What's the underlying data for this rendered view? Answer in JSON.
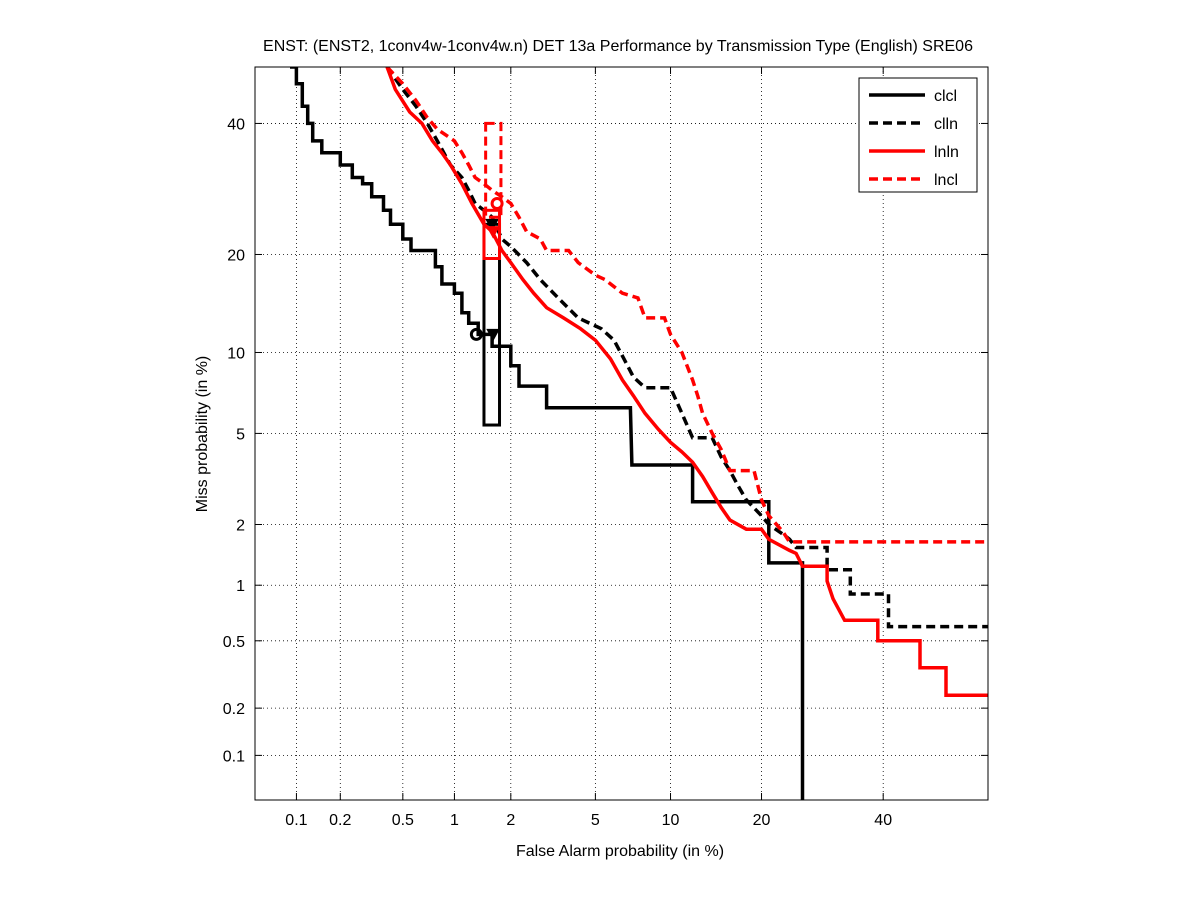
{
  "chart_data": {
    "type": "line",
    "title": "ENST: (ENST2, 1conv4w-1conv4w.n) DET 13a Performance by Transmission Type (English) SRE06",
    "xlabel": "False Alarm probability (in %)",
    "ylabel": "Miss probability (in %)",
    "xscale": "normal-deviate (probit)",
    "yscale": "normal-deviate (probit)",
    "xlim": [
      0.05,
      60
    ],
    "ylim": [
      0.05,
      50
    ],
    "xticks": [
      0.1,
      0.2,
      0.5,
      1,
      2,
      5,
      10,
      20,
      40
    ],
    "xtick_labels": [
      "0.1",
      "0.2",
      "0.5",
      "1",
      "2",
      "5",
      "10",
      "20",
      "40"
    ],
    "yticks": [
      0.1,
      0.2,
      0.5,
      1,
      2,
      5,
      10,
      20,
      40
    ],
    "ytick_labels": [
      "0.1",
      "0.2",
      "0.5",
      "1",
      "2",
      "5",
      "10",
      "20",
      "40"
    ],
    "grid": "dotted",
    "legend_position": "top-right",
    "series": [
      {
        "name": "clcl",
        "color": "#000000",
        "dash": "solid",
        "points": [
          [
            0.09,
            50
          ],
          [
            0.1,
            50
          ],
          [
            0.1,
            47
          ],
          [
            0.11,
            47
          ],
          [
            0.11,
            43
          ],
          [
            0.12,
            43
          ],
          [
            0.12,
            40
          ],
          [
            0.13,
            40
          ],
          [
            0.13,
            37
          ],
          [
            0.15,
            37
          ],
          [
            0.15,
            35
          ],
          [
            0.2,
            35
          ],
          [
            0.2,
            33
          ],
          [
            0.24,
            33
          ],
          [
            0.24,
            31
          ],
          [
            0.28,
            31
          ],
          [
            0.28,
            30
          ],
          [
            0.32,
            30
          ],
          [
            0.32,
            28
          ],
          [
            0.38,
            28
          ],
          [
            0.38,
            26
          ],
          [
            0.42,
            26
          ],
          [
            0.42,
            24
          ],
          [
            0.5,
            24
          ],
          [
            0.5,
            22
          ],
          [
            0.56,
            22
          ],
          [
            0.56,
            20.5
          ],
          [
            0.78,
            20.5
          ],
          [
            0.78,
            18.5
          ],
          [
            0.85,
            18.5
          ],
          [
            0.85,
            16.5
          ],
          [
            1.0,
            16.5
          ],
          [
            1.0,
            15.5
          ],
          [
            1.1,
            15.5
          ],
          [
            1.1,
            13.5
          ],
          [
            1.2,
            13.5
          ],
          [
            1.2,
            12.5
          ],
          [
            1.35,
            12.5
          ],
          [
            1.35,
            11.5
          ],
          [
            1.6,
            11.5
          ],
          [
            1.6,
            10.5
          ],
          [
            2.0,
            10.5
          ],
          [
            2.0,
            9
          ],
          [
            2.2,
            9
          ],
          [
            2.2,
            7.6
          ],
          [
            3.0,
            7.6
          ],
          [
            3.0,
            6.3
          ],
          [
            7.0,
            6.3
          ],
          [
            7.1,
            3.7
          ],
          [
            12,
            3.7
          ],
          [
            12,
            2.55
          ],
          [
            21,
            2.55
          ],
          [
            21,
            1.3
          ],
          [
            26,
            1.3
          ],
          [
            26,
            0.0501
          ]
        ],
        "marker": {
          "type": "circle",
          "at": [
            1.32,
            11.5
          ]
        },
        "marker2": {
          "type": "triangle-down",
          "at": [
            1.62,
            11.5
          ]
        },
        "ci_box": {
          "x": [
            1.45,
            1.75
          ],
          "y": [
            5.4,
            24
          ]
        }
      },
      {
        "name": "clln",
        "color": "#000000",
        "dash": "dashed",
        "points": [
          [
            0.4,
            50
          ],
          [
            0.5,
            46
          ],
          [
            0.6,
            43
          ],
          [
            0.7,
            40
          ],
          [
            0.8,
            37
          ],
          [
            0.95,
            33
          ],
          [
            1.1,
            31
          ],
          [
            1.2,
            29
          ],
          [
            1.3,
            27
          ],
          [
            1.45,
            26
          ],
          [
            1.6,
            25
          ],
          [
            1.8,
            22
          ],
          [
            2.0,
            21
          ],
          [
            2.4,
            19
          ],
          [
            2.8,
            17
          ],
          [
            3.4,
            15
          ],
          [
            4.2,
            13
          ],
          [
            5.3,
            12
          ],
          [
            6.0,
            11
          ],
          [
            6.6,
            9.5
          ],
          [
            7.2,
            8.2
          ],
          [
            8.0,
            7.5
          ],
          [
            10,
            7.5
          ],
          [
            11,
            6
          ],
          [
            12,
            4.8
          ],
          [
            14,
            4.8
          ],
          [
            15,
            4
          ],
          [
            16,
            3.5
          ],
          [
            17,
            3
          ],
          [
            18,
            2.6
          ],
          [
            20,
            2.2
          ],
          [
            21,
            2
          ],
          [
            23,
            1.8
          ],
          [
            24,
            1.7
          ],
          [
            25,
            1.55
          ],
          [
            30,
            1.55
          ],
          [
            30,
            1.2
          ],
          [
            34,
            1.2
          ],
          [
            34,
            0.9
          ],
          [
            41,
            0.9
          ],
          [
            41,
            0.6
          ],
          [
            60,
            0.6
          ]
        ],
        "marker": {
          "type": "triangle-down",
          "at": [
            1.6,
            24
          ]
        }
      },
      {
        "name": "lnln",
        "color": "#ff0000",
        "dash": "solid",
        "points": [
          [
            0.4,
            50
          ],
          [
            0.45,
            46
          ],
          [
            0.55,
            42
          ],
          [
            0.65,
            40
          ],
          [
            0.75,
            37
          ],
          [
            0.85,
            35
          ],
          [
            0.95,
            33
          ],
          [
            1.1,
            30
          ],
          [
            1.25,
            27
          ],
          [
            1.45,
            24
          ],
          [
            1.6,
            23
          ],
          [
            1.8,
            20.5
          ],
          [
            2.0,
            19
          ],
          [
            2.3,
            17
          ],
          [
            2.6,
            15.5
          ],
          [
            3.0,
            14
          ],
          [
            3.6,
            13
          ],
          [
            4.3,
            12
          ],
          [
            5.0,
            11
          ],
          [
            5.8,
            9.5
          ],
          [
            6.5,
            8
          ],
          [
            7.2,
            7
          ],
          [
            8,
            6
          ],
          [
            9,
            5.2
          ],
          [
            10,
            4.6
          ],
          [
            11,
            4.2
          ],
          [
            12,
            3.8
          ],
          [
            13,
            3.3
          ],
          [
            14,
            2.8
          ],
          [
            15,
            2.4
          ],
          [
            16,
            2.1
          ],
          [
            18,
            1.9
          ],
          [
            20,
            1.9
          ],
          [
            21,
            1.7
          ],
          [
            24,
            1.5
          ],
          [
            25,
            1.45
          ],
          [
            26,
            1.25
          ],
          [
            30,
            1.25
          ],
          [
            30,
            1.05
          ],
          [
            31,
            0.85
          ],
          [
            33,
            0.65
          ],
          [
            39,
            0.65
          ],
          [
            39,
            0.5
          ],
          [
            47,
            0.5
          ],
          [
            47,
            0.35
          ],
          [
            52,
            0.35
          ],
          [
            52,
            0.24
          ],
          [
            60,
            0.24
          ]
        ],
        "marker": {
          "type": "circle",
          "at": [
            1.7,
            27
          ]
        },
        "marker2": {
          "type": "triangle-down",
          "at": [
            1.62,
            23
          ]
        },
        "ci_box": {
          "x": [
            1.45,
            1.75
          ],
          "y": [
            19.5,
            26
          ]
        }
      },
      {
        "name": "lncl",
        "color": "#ff0000",
        "dash": "dashed",
        "points": [
          [
            0.4,
            50
          ],
          [
            0.5,
            47
          ],
          [
            0.6,
            44
          ],
          [
            0.7,
            41
          ],
          [
            0.8,
            39
          ],
          [
            1.0,
            37
          ],
          [
            1.1,
            35
          ],
          [
            1.2,
            33
          ],
          [
            1.3,
            31
          ],
          [
            1.45,
            30
          ],
          [
            1.6,
            29
          ],
          [
            1.8,
            28
          ],
          [
            2.0,
            27
          ],
          [
            2.2,
            25
          ],
          [
            2.4,
            23
          ],
          [
            2.8,
            22
          ],
          [
            3.0,
            20.5
          ],
          [
            3.8,
            20.5
          ],
          [
            4.2,
            19
          ],
          [
            5.0,
            17.5
          ],
          [
            5.5,
            17
          ],
          [
            6.5,
            15.5
          ],
          [
            7.5,
            15
          ],
          [
            8,
            13
          ],
          [
            9.5,
            13
          ],
          [
            10,
            11.5
          ],
          [
            11,
            10
          ],
          [
            12,
            8
          ],
          [
            12.5,
            7
          ],
          [
            13,
            6
          ],
          [
            14,
            5
          ],
          [
            15,
            4.3
          ],
          [
            16,
            3.5
          ],
          [
            19,
            3.5
          ],
          [
            20,
            2.6
          ],
          [
            21,
            2.2
          ],
          [
            23,
            1.85
          ],
          [
            24,
            1.65
          ],
          [
            60,
            1.65
          ]
        ],
        "ci_box": {
          "x": [
            1.48,
            1.78
          ],
          "y": [
            25,
            40
          ]
        }
      }
    ]
  }
}
